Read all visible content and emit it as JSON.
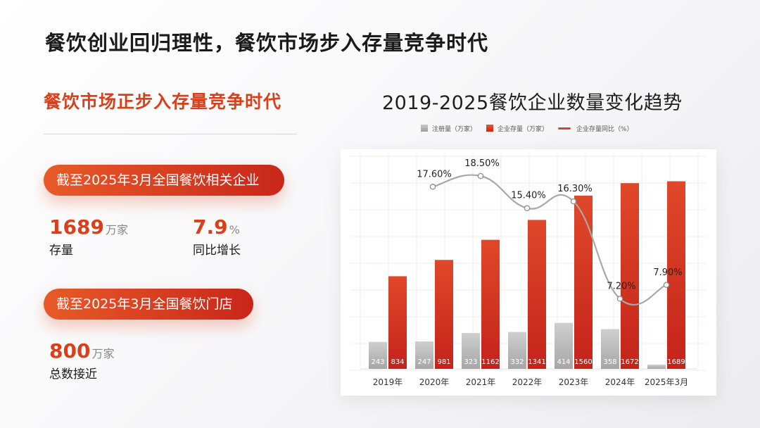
{
  "header": {
    "title": "餐饮创业回归理性，餐饮市场步入存量竞争时代"
  },
  "left": {
    "subtitle": "餐饮市场正步入存量竞争时代",
    "pill1": "截至2025年3月全国餐饮相关企业",
    "stat1": {
      "value": "1689",
      "unit": "万家",
      "caption": "存量"
    },
    "stat2": {
      "value": "7.9",
      "unit": "%",
      "caption": "同比增长"
    },
    "pill2": "截至2025年3月全国餐饮门店",
    "stat3": {
      "value": "800",
      "unit": "万家",
      "caption": "总数接近"
    }
  },
  "colors": {
    "accent": "#d8401c",
    "bar_red": "#d83a1c",
    "bar_grey": "#b4b4b4",
    "line": "#a8a8a8"
  },
  "chart_data": {
    "type": "bar",
    "title": "2019-2025餐饮企业数量变化趋势",
    "categories": [
      "2019年",
      "2020年",
      "2021年",
      "2022年",
      "2023年",
      "2024年",
      "2025年3月"
    ],
    "series": [
      {
        "name": "注册量（万家）",
        "type": "bar",
        "values": [
          243,
          247,
          323,
          332,
          414,
          358,
          39
        ]
      },
      {
        "name": "企业存量（万家）",
        "type": "bar",
        "values": [
          834,
          981,
          1162,
          1341,
          1560,
          1672,
          1689
        ]
      },
      {
        "name": "企业存量同比（%）",
        "type": "line",
        "values": [
          null,
          17.6,
          18.5,
          15.4,
          16.3,
          7.2,
          7.9
        ],
        "labels": [
          "",
          "17.60%",
          "18.50%",
          "15.40%",
          "16.30%",
          "7.20%",
          "7.90%"
        ]
      }
    ],
    "legend_position": "top",
    "grid": true
  }
}
